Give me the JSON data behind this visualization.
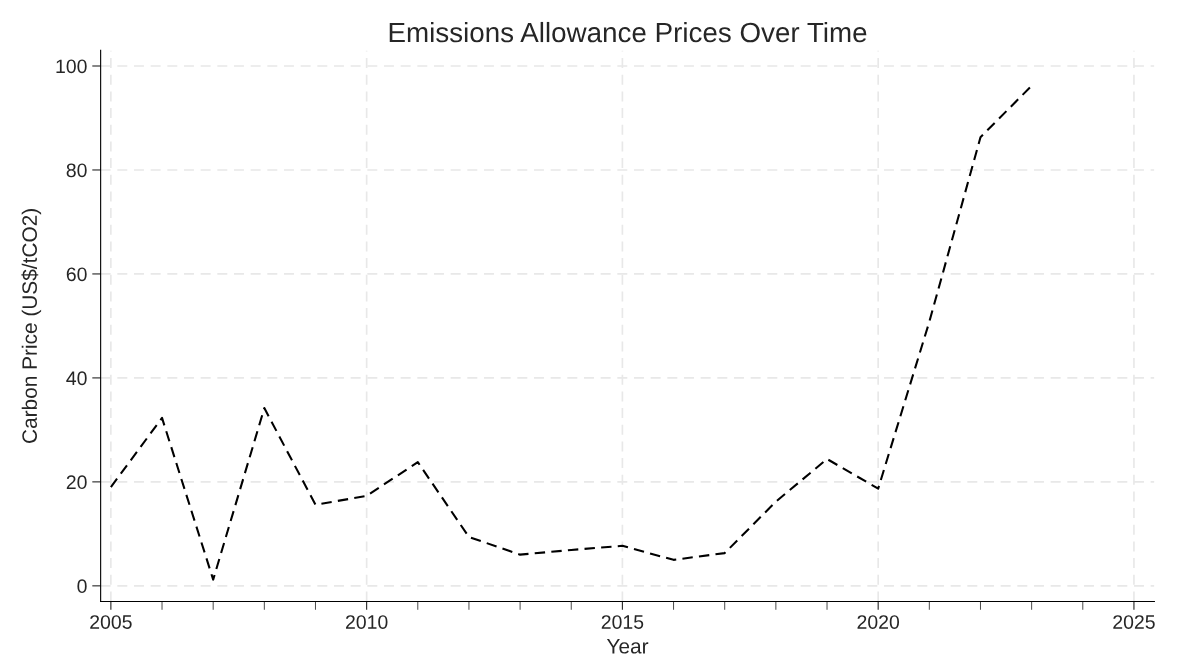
{
  "chart_data": {
    "type": "line",
    "title": "Emissions Allowance Prices Over Time",
    "xlabel": "Year",
    "ylabel": "Carbon Price (US$/tCO2)",
    "x": [
      2005,
      2006,
      2007,
      2008,
      2009,
      2010,
      2011,
      2012,
      2013,
      2014,
      2015,
      2016,
      2017,
      2018,
      2019,
      2020,
      2021,
      2022,
      2023
    ],
    "series": [
      {
        "color": "#000000",
        "values": [
          19,
          32.3,
          1.2,
          34.2,
          15.6,
          17.3,
          23.8,
          9.4,
          6,
          6.9,
          7.7,
          5,
          6.3,
          16.2,
          24.4,
          18.7,
          50.8,
          86.3,
          96.2
        ]
      }
    ],
    "xlim": [
      2004.8,
      2025.4
    ],
    "ylim": [
      -3,
      103
    ],
    "xticks": [
      2005,
      {
        "value": 2006,
        "label": null
      },
      {
        "value": 2007,
        "label": null
      },
      {
        "value": 2008,
        "label": null
      },
      {
        "value": 2009,
        "label": null
      },
      2010,
      {
        "value": 2011,
        "label": null
      },
      {
        "value": 2012,
        "label": null
      },
      {
        "value": 2013,
        "label": null
      },
      {
        "value": 2014,
        "label": null
      },
      2015,
      {
        "value": 2016,
        "label": null
      },
      {
        "value": 2017,
        "label": null
      },
      {
        "value": 2018,
        "label": null
      },
      {
        "value": 2019,
        "label": null
      },
      2020,
      {
        "value": 2021,
        "label": null
      },
      {
        "value": 2022,
        "label": null
      },
      {
        "value": 2023,
        "label": null
      },
      {
        "value": 2024,
        "label": null
      },
      2025
    ],
    "yticks": [
      0,
      20,
      40,
      60,
      80,
      100
    ],
    "grid": true,
    "line_style": "dashed",
    "marker": "none"
  }
}
